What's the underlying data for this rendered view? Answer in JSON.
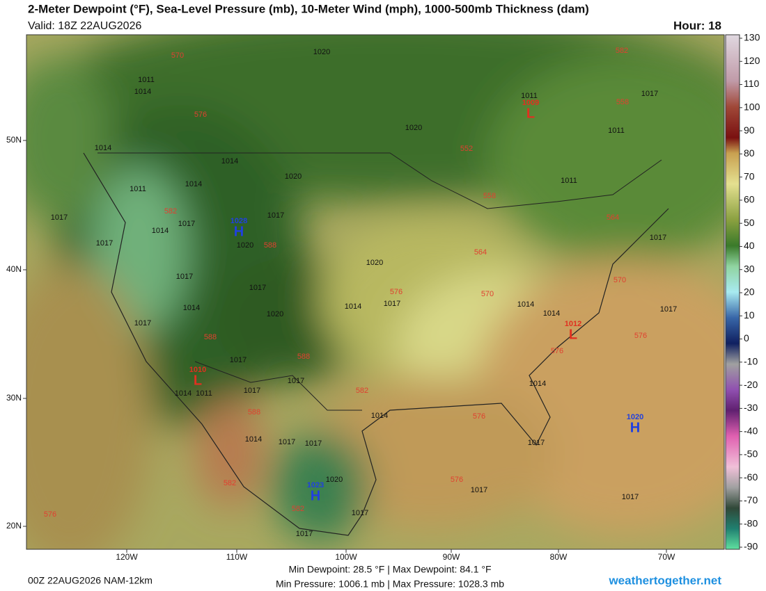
{
  "header": {
    "title": "2-Meter Dewpoint (°F), Sea-Level Pressure (mb), 10-Meter Wind (mph), 1000-500mb Thickness (dam)",
    "valid": "Valid: 18Z 22AUG2026",
    "hour": "Hour: 18"
  },
  "colorbar": {
    "ticks": [
      130,
      120,
      110,
      100,
      90,
      80,
      70,
      60,
      50,
      40,
      30,
      20,
      10,
      0,
      -10,
      -20,
      -30,
      -40,
      -50,
      -60,
      -70,
      -80,
      -90
    ]
  },
  "map": {
    "lat_labels": [
      "50N",
      "40N",
      "30N",
      "20N"
    ],
    "lon_labels": [
      "120W",
      "110W",
      "100W",
      "90W",
      "80W",
      "70W"
    ],
    "isobar_labels": [
      1020,
      1011,
      1014,
      1020,
      1014,
      1014,
      1020,
      1011,
      1014,
      1017,
      1017,
      1014,
      1017,
      1017,
      1020,
      1020,
      1017,
      1017,
      1014,
      1014,
      1017,
      1017,
      1020,
      1017,
      1014,
      1014,
      1017,
      1014,
      1011,
      1017,
      1014,
      1014,
      1017,
      1017,
      1020,
      1017,
      1017,
      1017,
      1017,
      1011,
      1017,
      1011,
      1011,
      1017,
      1017,
      1017,
      1014
    ],
    "thickness_labels": [
      570,
      582,
      576,
      558,
      552,
      558,
      582,
      564,
      564,
      588,
      576,
      570,
      570,
      576,
      576,
      588,
      588,
      582,
      588,
      576,
      576,
      582,
      582,
      576
    ],
    "centers": [
      {
        "letter": "H",
        "pressure": 1028
      },
      {
        "letter": "L",
        "pressure": 1009
      },
      {
        "letter": "L",
        "pressure": 1012
      },
      {
        "letter": "L",
        "pressure": 1010
      },
      {
        "letter": "H",
        "pressure": 1020
      },
      {
        "letter": "H",
        "pressure": 1023
      }
    ]
  },
  "footer": {
    "run": "00Z 22AUG2026 NAM-12km",
    "dewpoint": "Min Dewpoint: 28.5 °F | Max Dewpoint: 84.1 °F",
    "pressure": "Min Pressure: 1006.1 mb | Max Pressure: 1028.3 mb",
    "site": "weathertogether.net"
  }
}
